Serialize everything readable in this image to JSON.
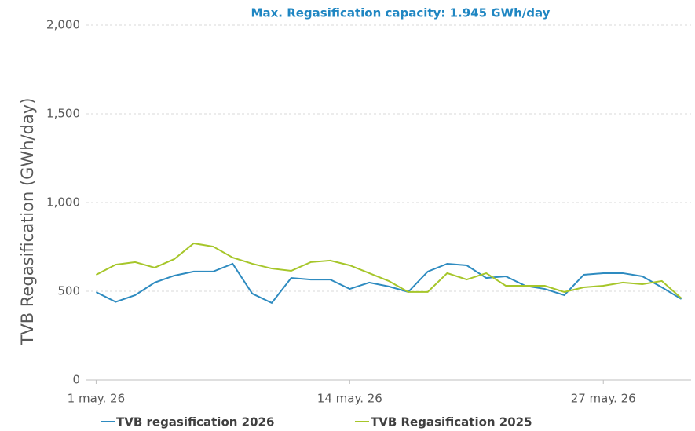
{
  "chart_data": {
    "type": "line",
    "title": "Max. Regasification capacity: 1.945 GWh/day",
    "y_label": "TVB Regasification (GWh/day)",
    "categories": [
      "1 may. 26",
      null,
      null,
      null,
      null,
      null,
      null,
      null,
      null,
      null,
      null,
      null,
      null,
      "14 may. 26",
      null,
      null,
      null,
      null,
      null,
      null,
      null,
      null,
      null,
      null,
      null,
      null,
      "27 may. 26",
      null,
      null,
      null,
      null
    ],
    "series": [
      {
        "name": "TVB regasification 2026",
        "color": "#2e8bc0",
        "values": [
          495,
          440,
          478,
          549,
          588,
          611,
          611,
          655,
          487,
          434,
          575,
          566,
          566,
          513,
          549,
          527,
          496,
          611,
          655,
          646,
          575,
          584,
          531,
          513,
          478,
          593,
          602,
          602,
          584,
          522,
          456
        ]
      },
      {
        "name": "TVB Regasification 2025",
        "color": "#a6c62a",
        "values": [
          593,
          650,
          664,
          633,
          681,
          770,
          752,
          690,
          655,
          628,
          615,
          664,
          673,
          646,
          602,
          558,
          496,
          496,
          602,
          566,
          602,
          531,
          531,
          531,
          496,
          522,
          531,
          549,
          540,
          558,
          460
        ]
      }
    ],
    "ylim": [
      0,
      2000
    ],
    "yticks": [
      0,
      500,
      {
        "value": 1000,
        "label": "1,000"
      },
      {
        "value": 1500,
        "label": "1,500"
      },
      {
        "value": 2000,
        "label": "2,000"
      }
    ],
    "grid": true,
    "legend": "bottom"
  }
}
